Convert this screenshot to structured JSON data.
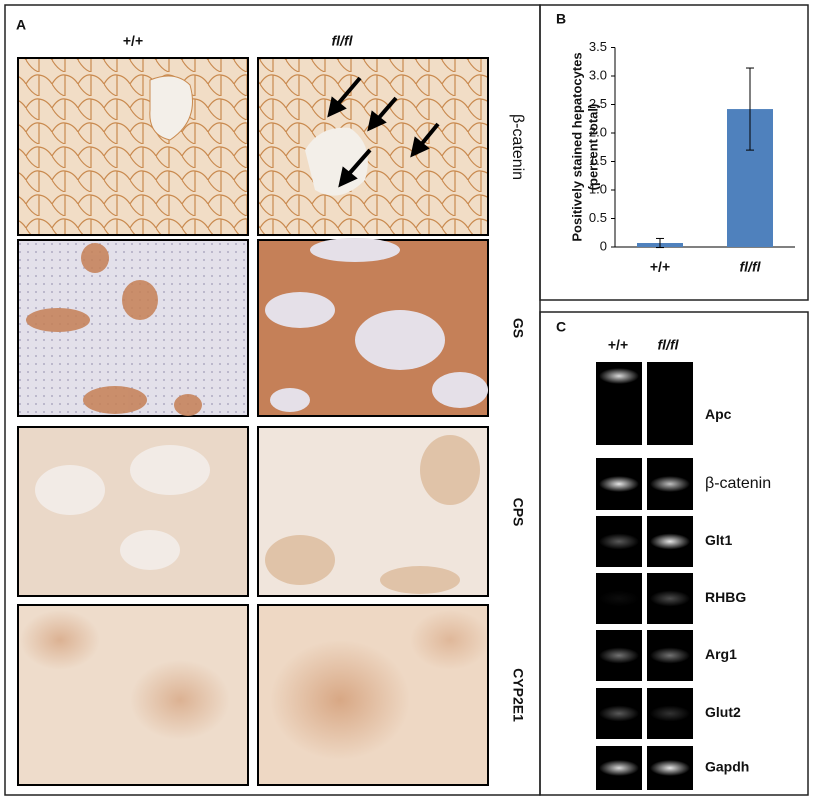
{
  "panel_a": {
    "label": "A",
    "columns": [
      "+/+",
      "fl/fl"
    ],
    "rows": [
      "β-catenin",
      "GS",
      "CPS",
      "CYP2E1"
    ]
  },
  "chart_data": {
    "type": "bar",
    "label": "B",
    "ylabel": [
      "Positively stained hepatocytes",
      "(percent total)"
    ],
    "categories": [
      "+/+",
      "fl/fl"
    ],
    "values": [
      0.07,
      2.42
    ],
    "errors": [
      0.08,
      0.72
    ],
    "color": "#4f81bd",
    "ylim": [
      0,
      3.5
    ],
    "yticks": [
      0,
      0.5,
      {
        "value": 1,
        "label": "1.0"
      },
      1.5,
      {
        "value": 2,
        "label": "2.0"
      },
      2.5,
      {
        "value": 3,
        "label": "3.0"
      },
      3.5
    ]
  },
  "panel_c": {
    "label": "C",
    "columns": [
      "+/+",
      "fl/fl"
    ],
    "genes": [
      "Apc",
      "β-catenin",
      "Glt1",
      "RHBG",
      "Arg1",
      "Glut2",
      "Gapdh"
    ]
  }
}
